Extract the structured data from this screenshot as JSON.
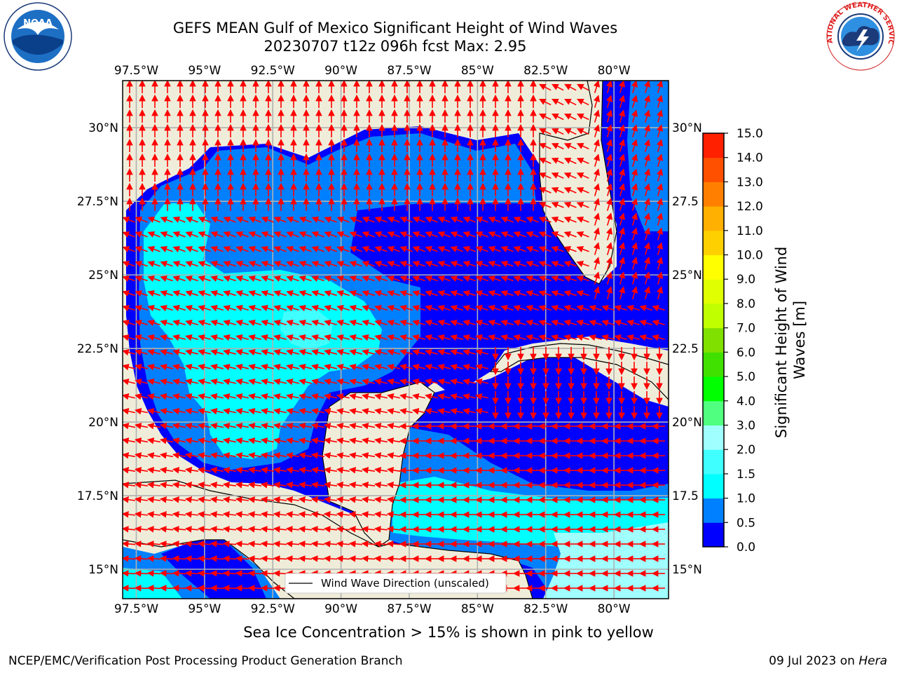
{
  "header": {
    "title_line1": "GEFS MEAN Gulf of Mexico Significant Height of Wind Waves",
    "title_line2": "20230707 t12z 096h fcst   Max: 2.95"
  },
  "logos": {
    "left": {
      "name": "noaa-logo",
      "text": "NOAA"
    },
    "right": {
      "name": "nws-logo",
      "text": "NATIONAL WEATHER SERVICE"
    }
  },
  "map": {
    "lon_ticks": [
      "97.5°W",
      "95°W",
      "92.5°W",
      "90°W",
      "87.5°W",
      "85°W",
      "82.5°W",
      "80°W"
    ],
    "lon_values": [
      -97.5,
      -95,
      -92.5,
      -90,
      -87.5,
      -85,
      -82.5,
      -80
    ],
    "lat_ticks_left": [
      "30°N",
      "27.5°N",
      "25°N",
      "22.5°N",
      "20°N",
      "17.5°N",
      "15°N"
    ],
    "lat_ticks_right": [
      "30°N",
      "27.5",
      "25°N",
      "22.5",
      "20°N",
      "17.5",
      "15°N"
    ],
    "lat_values": [
      30,
      27.5,
      25,
      22.5,
      20,
      17.5,
      15
    ],
    "lon_range": [
      -98,
      -78
    ],
    "lat_range": [
      14,
      31.6
    ],
    "land_color": "#efedd9",
    "arrow_color": "#ff0000",
    "legend_label": "Wind Wave Direction (unscaled)"
  },
  "colorbar": {
    "label_line1": "Significant Height of Wind",
    "label_line2": "Waves [m]",
    "ticks": [
      "0.0",
      "0.5",
      "1.0",
      "1.5",
      "2.0",
      "3.0",
      "4.0",
      "5.0",
      "6.0",
      "7.0",
      "8.0",
      "9.0",
      "10.0",
      "11.0",
      "12.0",
      "13.0",
      "14.0",
      "15.0"
    ],
    "colors": [
      "#0000ff",
      "#0080ff",
      "#00ffff",
      "#40ffff",
      "#a0ffff",
      "#50ff80",
      "#00ff00",
      "#40e000",
      "#80e000",
      "#c0ff00",
      "#e0ff00",
      "#ffff00",
      "#ffd000",
      "#ffb000",
      "#ff8000",
      "#ff5000",
      "#ff2000"
    ]
  },
  "caption": "Sea Ice Concentration > 15% is shown in pink to yellow",
  "footer": {
    "left": "NCEP/EMC/Verification Post Processing Product Generation Branch",
    "right_date": "09 Jul 2023 on ",
    "right_machine": "Hera"
  }
}
